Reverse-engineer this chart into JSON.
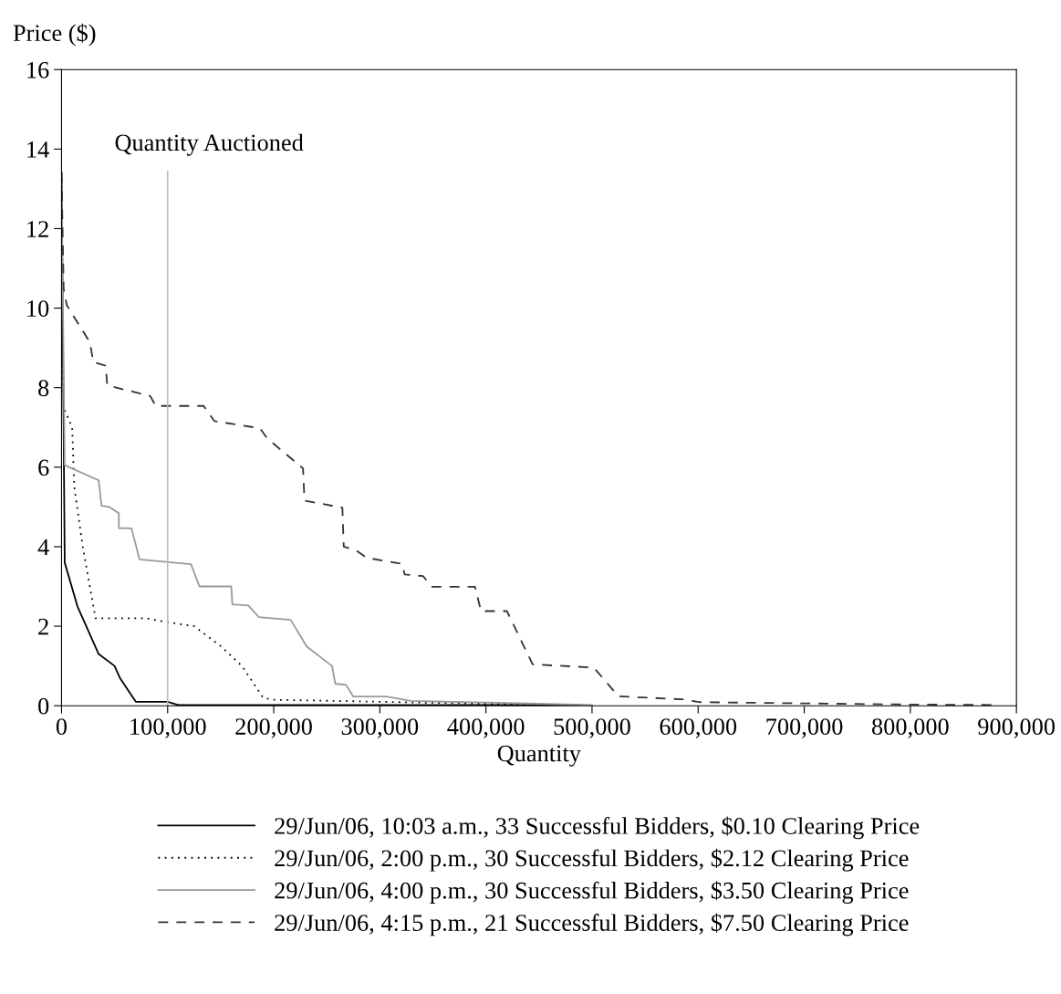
{
  "chart_data": {
    "type": "line",
    "xlabel": "Quantity",
    "ylabel": "Price ($)",
    "xlim": [
      0,
      900000
    ],
    "ylim": [
      0,
      16
    ],
    "xticks": [
      0,
      {
        "value": 100000,
        "label": "100,000"
      },
      {
        "value": 200000,
        "label": "200,000"
      },
      {
        "value": 300000,
        "label": "300,000"
      },
      {
        "value": 400000,
        "label": "400,000"
      },
      {
        "value": 500000,
        "label": "500,000"
      },
      {
        "value": 600000,
        "label": "600,000"
      },
      {
        "value": 700000,
        "label": "700,000"
      },
      {
        "value": 800000,
        "label": "800,000"
      },
      {
        "value": 900000,
        "label": "900,000"
      }
    ],
    "yticks": [
      0,
      2,
      4,
      6,
      8,
      10,
      12,
      14,
      16
    ],
    "grid": false,
    "legend": "bottom",
    "marker": "none",
    "ref_lines": [
      {
        "axis": "x",
        "value": 100000,
        "label": "Quantity Auctioned",
        "color": "#bbbbbb",
        "line_style": "solid"
      }
    ],
    "series": [
      {
        "name": "29/Jun/06, 10:03 a.m., 33 Successful Bidders, $0.10 Clearing Price",
        "color": "#000000",
        "line_style": "solid",
        "x": [
          0,
          3000,
          15000,
          35000,
          50000,
          55000,
          70000,
          100000,
          110000,
          490000
        ],
        "values": [
          13.4,
          3.6,
          2.5,
          1.3,
          1.0,
          0.7,
          0.1,
          0.1,
          0.02,
          0.02
        ]
      },
      {
        "name": "29/Jun/06, 2:00 p.m., 30 Successful Bidders, $2.12 Clearing Price",
        "color": "#000000",
        "line_style": "dotted",
        "x": [
          0,
          2000,
          10000,
          12000,
          20000,
          32000,
          80000,
          100000,
          125000,
          150000,
          170000,
          190000,
          200000,
          300000,
          400000,
          490000
        ],
        "values": [
          13.4,
          7.5,
          7.0,
          5.5,
          4.0,
          2.2,
          2.2,
          2.1,
          2.0,
          1.5,
          1.0,
          0.2,
          0.15,
          0.1,
          0.05,
          0.02
        ]
      },
      {
        "name": "29/Jun/06, 4:00 p.m., 30 Successful Bidders, $3.50 Clearing Price",
        "color": "#999999",
        "line_style": "solid",
        "x": [
          0,
          3000,
          35000,
          37700,
          45000,
          54000,
          54000,
          66000,
          73500,
          122000,
          130000,
          160000,
          161000,
          176000,
          186000,
          216000,
          231000,
          255000,
          258000,
          268000,
          275000,
          306000,
          329000,
          400000,
          450000,
          500000
        ],
        "values": [
          13.4,
          6.05,
          5.67,
          5.03,
          5.0,
          4.84,
          4.47,
          4.46,
          3.68,
          3.56,
          3.0,
          3.0,
          2.55,
          2.52,
          2.23,
          2.16,
          1.49,
          1.0,
          0.55,
          0.53,
          0.23,
          0.23,
          0.12,
          0.08,
          0.05,
          0.02
        ]
      },
      {
        "name": "29/Jun/06, 4:15 p.m., 21 Successful Bidders, $7.50 Clearing Price",
        "color": "#333333",
        "line_style": "dashed",
        "x": [
          0,
          2000,
          5000,
          26700,
          30000,
          41700,
          43000,
          83600,
          88800,
          134000,
          144000,
          187000,
          194000,
          227600,
          229000,
          264700,
          266000,
          277600,
          287600,
          320700,
          323500,
          340700,
          349300,
          389700,
          395400,
          419800,
          444000,
          501700,
          524700,
          585000,
          602000,
          700000,
          800000,
          883000
        ],
        "values": [
          13.4,
          10.5,
          10.07,
          9.14,
          8.64,
          8.55,
          8.06,
          7.79,
          7.54,
          7.54,
          7.16,
          6.98,
          6.72,
          5.97,
          5.16,
          4.98,
          4.0,
          3.91,
          3.72,
          3.57,
          3.3,
          3.26,
          2.99,
          2.99,
          2.38,
          2.38,
          1.04,
          0.96,
          0.24,
          0.16,
          0.09,
          0.06,
          0.03,
          0.02
        ]
      }
    ]
  }
}
